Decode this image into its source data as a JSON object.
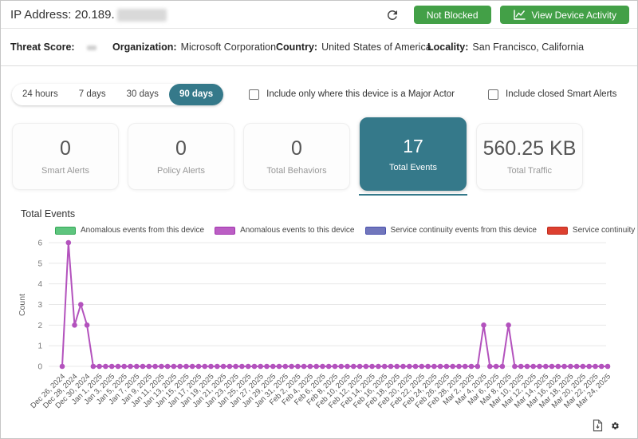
{
  "header": {
    "ip_label": "IP Address: 20.189.",
    "not_blocked_label": "Not Blocked",
    "view_activity_label": "View Device Activity",
    "button_color": "#43a047"
  },
  "info_bar": {
    "threat_score_label": "Threat Score:",
    "threat_score_value": "",
    "organization_label": "Organization:",
    "organization_value": "Microsoft Corporation",
    "country_label": "Country:",
    "country_value": "United States of America",
    "locality_label": "Locality:",
    "locality_value": "San Francisco, California"
  },
  "filters": {
    "ranges": [
      "24 hours",
      "7 days",
      "30 days",
      "90 days"
    ],
    "selected_range": "90 days",
    "checkbox_major_actor": {
      "label": "Include only where this device is a Major Actor",
      "checked": false
    },
    "checkbox_closed_alerts": {
      "label": "Include closed Smart Alerts",
      "checked": false
    }
  },
  "stat_cards": [
    {
      "value": "0",
      "label": "Smart Alerts",
      "selected": false
    },
    {
      "value": "0",
      "label": "Policy Alerts",
      "selected": false
    },
    {
      "value": "0",
      "label": "Total Behaviors",
      "selected": false
    },
    {
      "value": "17",
      "label": "Total Events",
      "selected": true
    },
    {
      "value": "560.25 KB",
      "label": "Total Traffic",
      "selected": false
    }
  ],
  "section_title": "Total Events",
  "accent_teal": "#35798a",
  "chart_data": {
    "type": "line",
    "title": "Total Events",
    "ylabel": "Count",
    "xlabel": "",
    "ylim": [
      0,
      6
    ],
    "yticks": [
      0,
      1,
      2,
      3,
      4,
      5,
      6
    ],
    "grid": true,
    "legend_position": "top",
    "x_interval_days": 1,
    "x_tick_every_points": 2,
    "x_tick_labels": [
      "Dec 26, 2024",
      "Dec 28, 2024",
      "Dec 30, 2024",
      "Jan 1, 2025",
      "Jan 3, 2025",
      "Jan 5, 2025",
      "Jan 7, 2025",
      "Jan 9, 2025",
      "Jan 11, 2025",
      "Jan 13, 2025",
      "Jan 15, 2025",
      "Jan 17, 2025",
      "Jan 19, 2025",
      "Jan 21, 2025",
      "Jan 23, 2025",
      "Jan 25, 2025",
      "Jan 27, 2025",
      "Jan 29, 2025",
      "Jan 31, 2025",
      "Feb 2, 2025",
      "Feb 4, 2025",
      "Feb 6, 2025",
      "Feb 8, 2025",
      "Feb 10, 2025",
      "Feb 12, 2025",
      "Feb 14, 2025",
      "Feb 16, 2025",
      "Feb 18, 2025",
      "Feb 20, 2025",
      "Feb 22, 2025",
      "Feb 24, 2025",
      "Feb 26, 2025",
      "Feb 28, 2025",
      "Mar 2, 2025",
      "Mar 4, 2025",
      "Mar 6, 2025",
      "Mar 8, 2025",
      "Mar 10, 2025",
      "Mar 12, 2025",
      "Mar 14, 2025",
      "Mar 16, 2025",
      "Mar 18, 2025",
      "Mar 20, 2025",
      "Mar 22, 2025",
      "Mar 24, 2025"
    ],
    "legend": [
      {
        "label": "Anomalous events from this device",
        "fill": "#5ec57e",
        "border": "#33a855"
      },
      {
        "label": "Anomalous events to this device",
        "fill": "#bb5ec4",
        "border": "#a235ae"
      },
      {
        "label": "Service continuity events from this device",
        "fill": "#7176bc",
        "border": "#4a51ad"
      },
      {
        "label": "Service continuity events to this device",
        "fill": "#dd4030",
        "border": "#bf2d1f"
      }
    ],
    "series": [
      {
        "name": "Anomalous events to this device",
        "color": "#b352bd",
        "values": [
          0,
          6,
          2,
          3,
          2,
          0,
          0,
          0,
          0,
          0,
          0,
          0,
          0,
          0,
          0,
          0,
          0,
          0,
          0,
          0,
          0,
          0,
          0,
          0,
          0,
          0,
          0,
          0,
          0,
          0,
          0,
          0,
          0,
          0,
          0,
          0,
          0,
          0,
          0,
          0,
          0,
          0,
          0,
          0,
          0,
          0,
          0,
          0,
          0,
          0,
          0,
          0,
          0,
          0,
          0,
          0,
          0,
          0,
          0,
          0,
          0,
          0,
          0,
          0,
          0,
          0,
          0,
          0,
          2,
          0,
          0,
          0,
          2,
          0,
          0,
          0,
          0,
          0,
          0,
          0,
          0,
          0,
          0,
          0,
          0,
          0,
          0,
          0,
          0
        ]
      }
    ]
  }
}
